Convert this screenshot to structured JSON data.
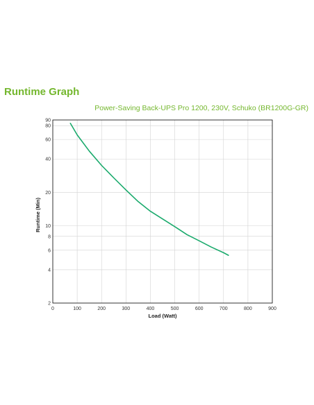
{
  "page": {
    "title": "Runtime Graph"
  },
  "chart_data": {
    "type": "line",
    "title": "",
    "subtitle": "Power-Saving Back-UPS Pro 1200, 230V, Schuko (BR1200G-GR)",
    "xlabel": "Load (Watt)",
    "ylabel": "Runtime (Min)",
    "xlim": [
      0,
      900
    ],
    "ylim": [
      2,
      90
    ],
    "yscale": "log",
    "grid": true,
    "x_ticks": [
      0,
      100,
      200,
      300,
      400,
      500,
      600,
      700,
      800,
      900
    ],
    "y_ticks": [
      2,
      4,
      6,
      8,
      10,
      20,
      40,
      60,
      80,
      90
    ],
    "series": [
      {
        "color": "#1aaa6c",
        "x": [
          72,
          100,
          150,
          200,
          250,
          300,
          350,
          400,
          450,
          500,
          550,
          600,
          650,
          700,
          720
        ],
        "y": [
          84,
          66,
          47,
          35,
          27,
          21,
          16.5,
          13.5,
          11.5,
          9.8,
          8.3,
          7.3,
          6.4,
          5.7,
          5.4
        ]
      }
    ]
  }
}
